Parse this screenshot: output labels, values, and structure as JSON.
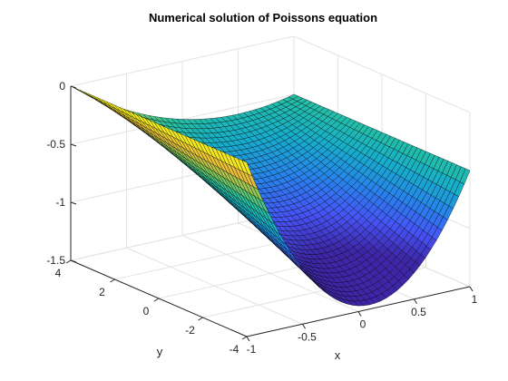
{
  "chart_data": {
    "type": "surface",
    "title": "Numerical solution of Poissons equation",
    "xlabel": "x",
    "ylabel": "y",
    "zlabel": "",
    "xlim": [
      -1,
      1
    ],
    "ylim": [
      -4,
      4
    ],
    "zlim": [
      -1.5,
      0
    ],
    "x_ticks": [
      "-1",
      "-0.5",
      "0",
      "0.5",
      "1"
    ],
    "y_ticks": [
      "-4",
      "-2",
      "0",
      "2",
      "4"
    ],
    "z_ticks": [
      "-1.5",
      "-1",
      "-0.5",
      "0"
    ],
    "grid": true,
    "box": "open",
    "colormap": "parula",
    "edge_color": "#000000",
    "surface": {
      "x_range": [
        -1,
        1
      ],
      "y_range": [
        -4,
        4
      ],
      "z_at_x_edge_min": 0,
      "z_at_x_edge_max": -0.5,
      "z_at_y_edge_min_center": -1.2,
      "z_at_y_edge_max_center": -0.25,
      "z_min": -1.2,
      "z_max": 0
    }
  }
}
